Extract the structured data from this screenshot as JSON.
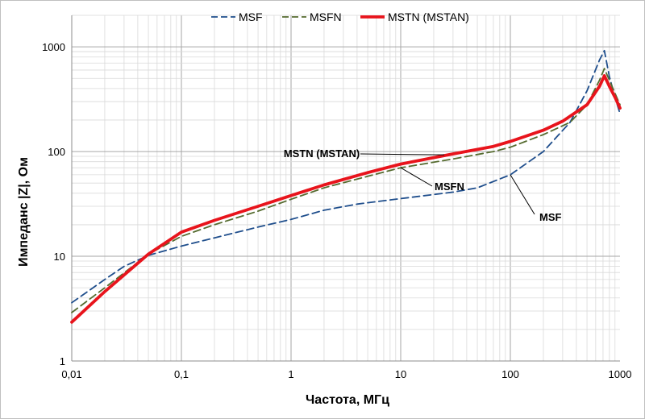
{
  "chart_data": {
    "type": "line",
    "title": "",
    "xlabel": "Частота, МГц",
    "ylabel": "Импеданс  |Z|, Ом",
    "x_scale": "log",
    "y_scale": "log",
    "xlim": [
      0.01,
      1000
    ],
    "ylim": [
      1,
      2000
    ],
    "grid": true,
    "legend_position": "top-center",
    "x_ticks": [
      {
        "value": 0.01,
        "label": "0,01"
      },
      {
        "value": 0.1,
        "label": "0,1"
      },
      {
        "value": 1,
        "label": "1"
      },
      {
        "value": 10,
        "label": "10"
      },
      {
        "value": 100,
        "label": "100"
      },
      {
        "value": 1000,
        "label": "1000"
      }
    ],
    "y_ticks": [
      {
        "value": 1,
        "label": "1"
      },
      {
        "value": 10,
        "label": "10"
      },
      {
        "value": 100,
        "label": "100"
      },
      {
        "value": 1000,
        "label": "1000"
      }
    ],
    "series": [
      {
        "name": "MSF",
        "color": "#1f4e8c",
        "style": "dashed",
        "points": [
          [
            0.01,
            3.6
          ],
          [
            0.02,
            6.0
          ],
          [
            0.03,
            8.0
          ],
          [
            0.05,
            10.2
          ],
          [
            0.1,
            12.5
          ],
          [
            0.2,
            15
          ],
          [
            0.5,
            19
          ],
          [
            1,
            22.5
          ],
          [
            2,
            27.5
          ],
          [
            4,
            31.5
          ],
          [
            10,
            35.5
          ],
          [
            30,
            41
          ],
          [
            50,
            45
          ],
          [
            100,
            60
          ],
          [
            200,
            100
          ],
          [
            350,
            190
          ],
          [
            500,
            380
          ],
          [
            650,
            750
          ],
          [
            720,
            920
          ],
          [
            800,
            520
          ],
          [
            900,
            330
          ],
          [
            1000,
            230
          ]
        ]
      },
      {
        "name": "MSFN",
        "color": "#556b2f",
        "style": "dashed",
        "points": [
          [
            0.01,
            2.9
          ],
          [
            0.02,
            5.0
          ],
          [
            0.05,
            10.5
          ],
          [
            0.1,
            15.5
          ],
          [
            0.2,
            20
          ],
          [
            0.5,
            27
          ],
          [
            1,
            35
          ],
          [
            2,
            45
          ],
          [
            5,
            58
          ],
          [
            10,
            70
          ],
          [
            30,
            85
          ],
          [
            70,
            100
          ],
          [
            100,
            110
          ],
          [
            200,
            145
          ],
          [
            350,
            190
          ],
          [
            500,
            280
          ],
          [
            650,
            480
          ],
          [
            720,
            620
          ],
          [
            800,
            480
          ],
          [
            900,
            360
          ],
          [
            1000,
            280
          ]
        ]
      },
      {
        "name": "MSTN (MSTAN)",
        "color": "#e8141c",
        "style": "solid",
        "points": [
          [
            0.01,
            2.35
          ],
          [
            0.02,
            4.6
          ],
          [
            0.05,
            10.5
          ],
          [
            0.1,
            17
          ],
          [
            0.2,
            22
          ],
          [
            0.5,
            30
          ],
          [
            1,
            38
          ],
          [
            2,
            48
          ],
          [
            5,
            63
          ],
          [
            10,
            76
          ],
          [
            30,
            95
          ],
          [
            70,
            112
          ],
          [
            100,
            125
          ],
          [
            200,
            160
          ],
          [
            300,
            195
          ],
          [
            500,
            280
          ],
          [
            650,
            420
          ],
          [
            720,
            530
          ],
          [
            800,
            420
          ],
          [
            900,
            330
          ],
          [
            1000,
            260
          ]
        ]
      }
    ],
    "annotations": [
      {
        "text": "MSTN (MSTAN)",
        "target_series": "MSTN (MSTAN)",
        "x": 25,
        "y": 93
      },
      {
        "text": "MSFN",
        "target_series": "MSFN",
        "x": 10,
        "y": 70
      },
      {
        "text": "MSF",
        "target_series": "MSF",
        "x": 100,
        "y": 60
      }
    ]
  }
}
